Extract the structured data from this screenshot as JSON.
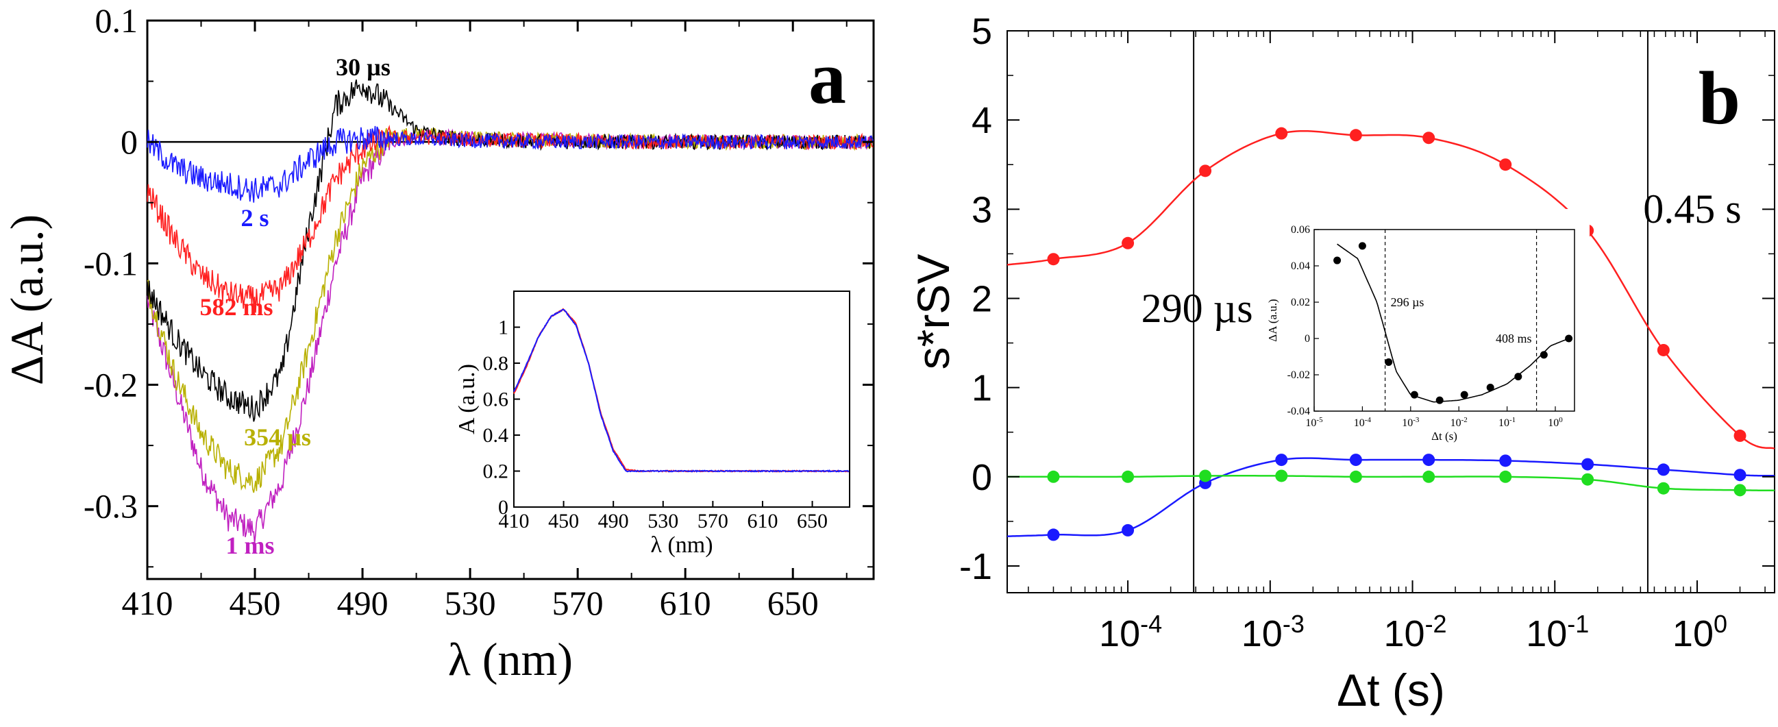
{
  "chart_data": [
    {
      "panel": "a",
      "type": "line",
      "panel_letter": "a",
      "xlabel": "λ (nm)",
      "ylabel": "ΔA (a.u.)",
      "xlim": [
        410,
        680
      ],
      "ylim": [
        -0.36,
        0.1
      ],
      "xticks": [
        "410",
        "450",
        "490",
        "530",
        "570",
        "610",
        "650"
      ],
      "yticks": [
        "0.1",
        "0",
        "-0.1",
        "-0.2",
        "-0.3"
      ],
      "zero_line": true,
      "series": [
        {
          "name": "1 ms",
          "color": "#c020c0",
          "x": [
            410,
            420,
            430,
            440,
            450,
            460,
            470,
            480,
            490,
            500,
            510,
            530,
            560,
            600,
            650,
            680
          ],
          "y": [
            -0.13,
            -0.2,
            -0.27,
            -0.31,
            -0.32,
            -0.28,
            -0.2,
            -0.1,
            -0.03,
            0.0,
            0.005,
            0.003,
            0.002,
            0.0,
            0.0,
            0.0
          ]
        },
        {
          "name": "354 µs",
          "color": "#b8b000",
          "x": [
            410,
            420,
            430,
            440,
            450,
            460,
            470,
            480,
            490,
            500,
            510,
            530,
            560,
            600,
            650,
            680
          ],
          "y": [
            -0.12,
            -0.19,
            -0.24,
            -0.27,
            -0.28,
            -0.25,
            -0.17,
            -0.08,
            -0.02,
            0.005,
            0.007,
            0.003,
            0.002,
            0.0,
            0.0,
            0.0
          ]
        },
        {
          "name": "30 µs",
          "color": "#000000",
          "x": [
            410,
            420,
            430,
            440,
            450,
            460,
            470,
            480,
            490,
            500,
            510,
            520,
            530,
            560,
            600,
            650,
            680
          ],
          "y": [
            -0.12,
            -0.16,
            -0.19,
            -0.21,
            -0.22,
            -0.19,
            -0.07,
            0.03,
            0.048,
            0.03,
            0.01,
            0.004,
            0.002,
            0.0,
            0.0,
            0.0,
            0.0
          ]
        },
        {
          "name": "582 ms",
          "color": "#ff2020",
          "x": [
            410,
            420,
            430,
            440,
            450,
            460,
            470,
            480,
            490,
            500,
            510,
            530,
            560,
            600,
            650,
            680
          ],
          "y": [
            -0.04,
            -0.08,
            -0.11,
            -0.125,
            -0.13,
            -0.12,
            -0.08,
            -0.03,
            -0.005,
            0.003,
            0.004,
            0.002,
            0.001,
            0.0,
            0.0,
            0.0
          ]
        },
        {
          "name": "2 s",
          "color": "#1a1aff",
          "x": [
            410,
            420,
            430,
            440,
            450,
            460,
            470,
            480,
            490,
            500,
            510,
            530,
            560,
            600,
            650,
            680
          ],
          "y": [
            0.0,
            -0.02,
            -0.03,
            -0.035,
            -0.04,
            -0.035,
            -0.015,
            0.0,
            0.003,
            0.003,
            0.002,
            0.001,
            0.0,
            0.0,
            0.0,
            0.0
          ]
        }
      ],
      "inset": {
        "type": "line",
        "xlabel": "λ (nm)",
        "ylabel": "A (a.u.)",
        "xlim": [
          410,
          680
        ],
        "ylim": [
          0,
          1.2
        ],
        "xticks": [
          "410",
          "450",
          "490",
          "530",
          "570",
          "610",
          "650"
        ],
        "yticks": [
          "0",
          "0.2",
          "0.4",
          "0.6",
          "0.8",
          "1"
        ],
        "series": [
          {
            "color": "#ff2020",
            "x": [
              410,
              420,
              430,
              440,
              450,
              460,
              470,
              480,
              490,
              500,
              510,
              530,
              570,
              610,
              650,
              680
            ],
            "y": [
              0.63,
              0.78,
              0.95,
              1.06,
              1.1,
              1.02,
              0.8,
              0.52,
              0.32,
              0.21,
              0.2,
              0.2,
              0.2,
              0.2,
              0.2,
              0.2
            ]
          },
          {
            "color": "#1a1aff",
            "x": [
              410,
              420,
              430,
              440,
              450,
              460,
              470,
              480,
              490,
              500,
              510,
              530,
              570,
              610,
              650,
              680
            ],
            "y": [
              0.64,
              0.79,
              0.95,
              1.06,
              1.1,
              1.01,
              0.8,
              0.51,
              0.31,
              0.2,
              0.2,
              0.2,
              0.2,
              0.2,
              0.2,
              0.2
            ]
          }
        ]
      }
    },
    {
      "panel": "b",
      "type": "scatter",
      "panel_letter": "b",
      "xlabel": "Δt (s)",
      "ylabel": "s*rSV",
      "x_scale": "log",
      "xlim": [
        1.42e-05,
        3.5
      ],
      "ylim": [
        -1.3,
        5
      ],
      "xticks": [
        {
          "base": "10",
          "exp": "-4"
        },
        {
          "base": "10",
          "exp": "-3"
        },
        {
          "base": "10",
          "exp": "-2"
        },
        {
          "base": "10",
          "exp": "-1"
        },
        {
          "base": "10",
          "exp": "0"
        }
      ],
      "yticks": [
        "-1",
        "0",
        "1",
        "2",
        "3",
        "4",
        "5"
      ],
      "vlines": [
        {
          "x": 0.00029,
          "label": "290 µs"
        },
        {
          "x": 0.45,
          "label": "0.45 s"
        }
      ],
      "series": [
        {
          "color": "#ff2020",
          "x": [
            3e-05,
            0.0001,
            0.00035,
            0.0012,
            0.004,
            0.013,
            0.045,
            0.17,
            0.58,
            2.0
          ],
          "y": [
            2.44,
            2.62,
            3.43,
            3.85,
            3.83,
            3.8,
            3.5,
            2.76,
            1.42,
            0.46
          ]
        },
        {
          "color": "#1a1aff",
          "x": [
            3e-05,
            0.0001,
            0.00035,
            0.0012,
            0.004,
            0.013,
            0.045,
            0.17,
            0.58,
            2.0
          ],
          "y": [
            -0.65,
            -0.6,
            -0.07,
            0.19,
            0.19,
            0.19,
            0.18,
            0.14,
            0.08,
            0.02
          ]
        },
        {
          "color": "#20dd20",
          "x": [
            3e-05,
            0.0001,
            0.00035,
            0.0012,
            0.004,
            0.013,
            0.045,
            0.17,
            0.58,
            2.0
          ],
          "y": [
            0.0,
            0.0,
            0.01,
            0.01,
            0.0,
            0.0,
            0.0,
            -0.03,
            -0.13,
            -0.15
          ]
        }
      ],
      "inset": {
        "type": "scatter",
        "xlabel": "Δt (s)",
        "ylabel": "ΔA (a.u.)",
        "x_scale": "log",
        "xlim": [
          1e-05,
          2.5
        ],
        "ylim": [
          -0.04,
          0.06
        ],
        "xticks": [
          {
            "base": "10",
            "exp": "-5"
          },
          {
            "base": "10",
            "exp": "-4"
          },
          {
            "base": "10",
            "exp": "-3"
          },
          {
            "base": "10",
            "exp": "-2"
          },
          {
            "base": "10",
            "exp": "-1"
          },
          {
            "base": "10",
            "exp": "0"
          }
        ],
        "yticks": [
          "0.06",
          "0.04",
          "0.02",
          "0",
          "-0.02",
          "-0.04"
        ],
        "vlines": [
          {
            "x": 0.000296,
            "label": "296 µs"
          },
          {
            "x": 0.408,
            "label": "408 ms"
          }
        ],
        "series": [
          {
            "color": "#000000",
            "x": [
              3e-05,
              0.0001,
              0.00035,
              0.0012,
              0.004,
              0.013,
              0.045,
              0.17,
              0.58,
              1.9
            ],
            "y": [
              0.043,
              0.051,
              -0.013,
              -0.031,
              -0.034,
              -0.031,
              -0.027,
              -0.021,
              -0.009,
              0.0
            ]
          }
        ]
      }
    }
  ]
}
